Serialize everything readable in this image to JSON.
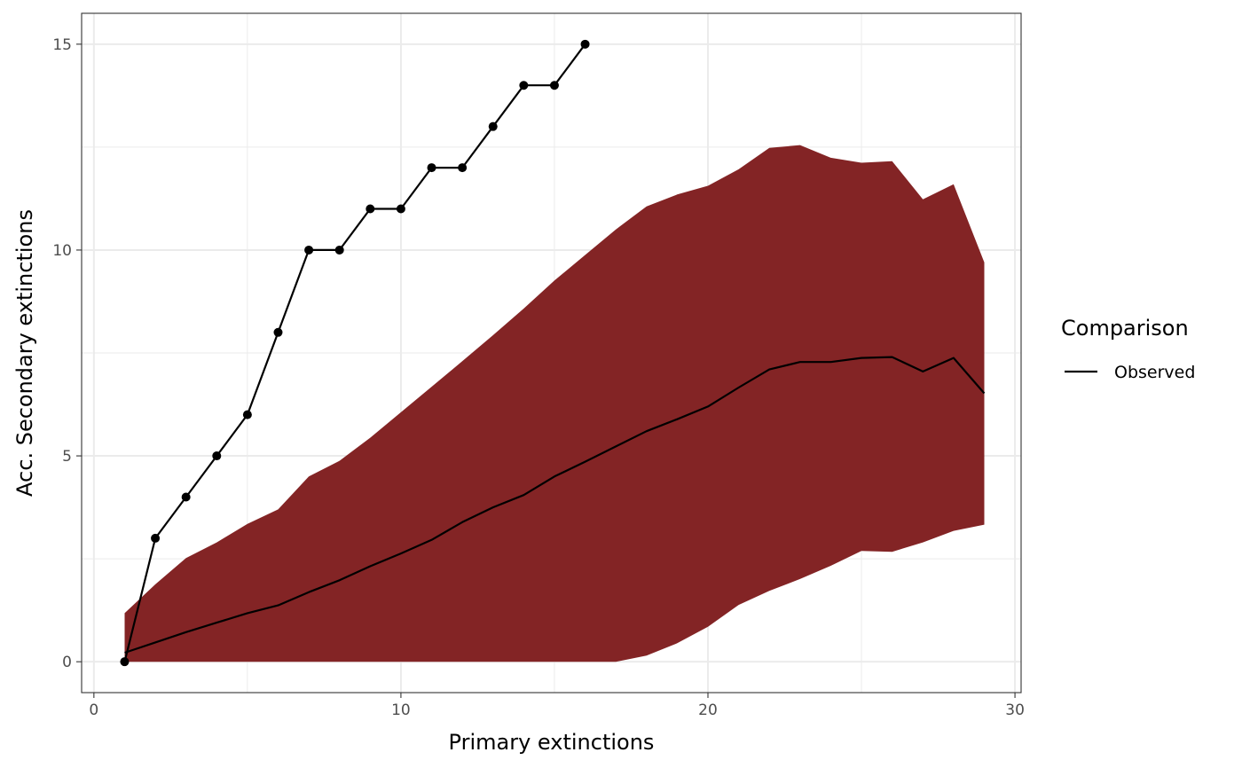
{
  "chart_data": {
    "type": "line",
    "title": "",
    "xlabel": "Primary extinctions",
    "ylabel": "Acc. Secondary extinctions",
    "xlim": [
      -0.4,
      30.2
    ],
    "ylim": [
      -0.75,
      15.75
    ],
    "x_ticks": [
      0,
      10,
      20,
      30
    ],
    "y_ticks": [
      0,
      5,
      10,
      15
    ],
    "grid": true,
    "legend": {
      "title": "Comparison",
      "position": "right",
      "entries": [
        "Observed"
      ]
    },
    "colors": {
      "band": "#832425",
      "line": "#000000",
      "grid": "#ebebeb",
      "panel_border": "#333333"
    },
    "series": [
      {
        "name": "Observed",
        "style": "line-points",
        "x": [
          1,
          2,
          3,
          4,
          5,
          6,
          7,
          8,
          9,
          10,
          11,
          12,
          13,
          14,
          15,
          16
        ],
        "y": [
          0,
          3,
          4,
          5,
          6,
          8,
          10,
          10,
          11,
          11,
          12,
          12,
          13,
          14,
          14,
          15
        ]
      },
      {
        "style": "line",
        "x": [
          1,
          2,
          3,
          4,
          5,
          6,
          7,
          8,
          9,
          10,
          11,
          12,
          13,
          14,
          15,
          16,
          17,
          18,
          19,
          20,
          21,
          22,
          23,
          24,
          25,
          26,
          27,
          28,
          29
        ],
        "y": [
          0.22,
          0.47,
          0.72,
          0.95,
          1.18,
          1.37,
          1.69,
          1.98,
          2.32,
          2.63,
          2.96,
          3.39,
          3.75,
          4.05,
          4.5,
          4.86,
          5.23,
          5.6,
          5.89,
          6.2,
          6.66,
          7.1,
          7.28,
          7.28,
          7.38,
          7.4,
          7.05,
          7.38,
          6.52
        ]
      },
      {
        "style": "band",
        "x": [
          1,
          2,
          3,
          4,
          5,
          6,
          7,
          8,
          9,
          10,
          11,
          12,
          13,
          14,
          15,
          16,
          17,
          18,
          19,
          20,
          21,
          22,
          23,
          24,
          25,
          26,
          27,
          28,
          29
        ],
        "lower": [
          0,
          0,
          0,
          0,
          0,
          0,
          0,
          0,
          0,
          0,
          0,
          0,
          0,
          0,
          0,
          0,
          0,
          0.15,
          0.45,
          0.85,
          1.38,
          1.72,
          2.01,
          2.33,
          2.69,
          2.67,
          2.9,
          3.18,
          3.33
        ],
        "upper": [
          1.18,
          1.88,
          2.52,
          2.9,
          3.35,
          3.7,
          4.5,
          4.88,
          5.44,
          6.06,
          6.68,
          7.3,
          7.93,
          8.58,
          9.26,
          9.88,
          10.5,
          11.06,
          11.35,
          11.56,
          11.96,
          12.48,
          12.55,
          12.24,
          12.12,
          12.16,
          11.23,
          11.6,
          9.7
        ]
      }
    ]
  }
}
